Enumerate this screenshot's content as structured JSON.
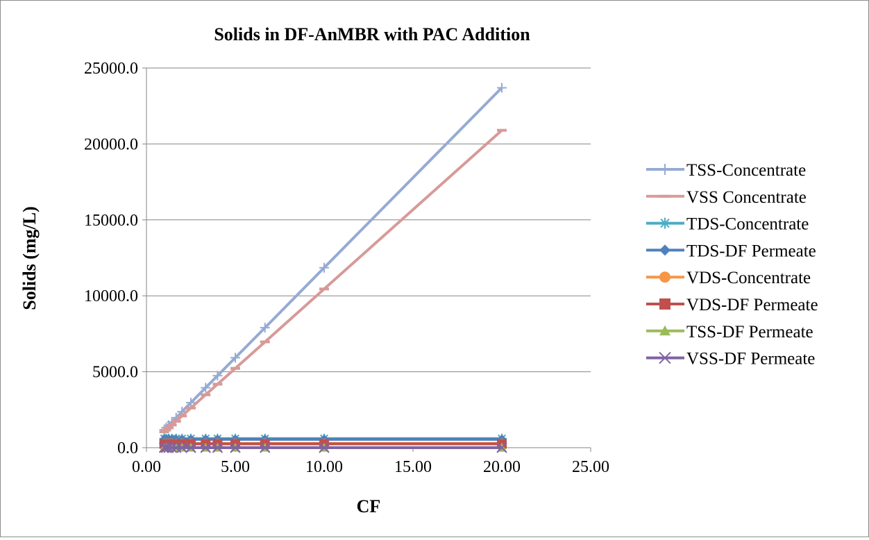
{
  "chart_data": {
    "type": "line",
    "title": "Solids in DF-AnMBR with PAC Addition",
    "xlabel": "CF",
    "ylabel": "Solids (mg/L)",
    "xlim": [
      0,
      25
    ],
    "ylim": [
      0,
      25000
    ],
    "x_ticks": [
      "0.00",
      "5.00",
      "10.00",
      "15.00",
      "20.00",
      "25.00"
    ],
    "y_ticks": [
      "0.0",
      "5000.0",
      "10000.0",
      "15000.0",
      "20000.0",
      "25000.0"
    ],
    "grid": "horizontal",
    "legend_position": "right",
    "x": [
      1.0,
      1.11,
      1.25,
      1.43,
      1.67,
      2.0,
      2.5,
      3.33,
      4.0,
      5.0,
      6.67,
      10.0,
      20.0
    ],
    "series": [
      {
        "name": "TSS-Concentrate",
        "color": "#95abd3",
        "marker": "plus",
        "values": [
          1185,
          1317,
          1481,
          1693,
          1975,
          2370,
          2963,
          3950,
          4740,
          5925,
          7900,
          11850,
          23700
        ]
      },
      {
        "name": "VSS Concentrate",
        "color": "#d79a98",
        "marker": "dash",
        "values": [
          1045,
          1161,
          1306,
          1493,
          1742,
          2090,
          2613,
          3483,
          4180,
          5225,
          6967,
          10450,
          20900
        ]
      },
      {
        "name": "TDS-Concentrate",
        "color": "#4bacc6",
        "marker": "star",
        "values": [
          600,
          600,
          600,
          600,
          600,
          600,
          600,
          600,
          600,
          600,
          600,
          600,
          600
        ]
      },
      {
        "name": "TDS-DF Permeate",
        "color": "#4f81bd",
        "marker": "diamond",
        "values": [
          550,
          550,
          550,
          550,
          550,
          550,
          550,
          550,
          550,
          550,
          550,
          550,
          550
        ]
      },
      {
        "name": "VDS-Concentrate",
        "color": "#f79646",
        "marker": "circle",
        "values": [
          280,
          280,
          280,
          280,
          280,
          280,
          280,
          280,
          280,
          280,
          280,
          280,
          280
        ]
      },
      {
        "name": "VDS-DF Permeate",
        "color": "#c0504d",
        "marker": "square",
        "values": [
          250,
          250,
          250,
          250,
          250,
          250,
          250,
          250,
          250,
          250,
          250,
          250,
          250
        ]
      },
      {
        "name": "TSS-DF Permeate",
        "color": "#9bbb59",
        "marker": "triangle",
        "values": [
          0,
          0,
          0,
          0,
          0,
          0,
          0,
          0,
          0,
          0,
          0,
          0,
          0
        ]
      },
      {
        "name": "VSS-DF Permeate",
        "color": "#8064a2",
        "marker": "x",
        "values": [
          0,
          0,
          0,
          0,
          0,
          0,
          0,
          0,
          0,
          0,
          0,
          0,
          0
        ]
      }
    ]
  }
}
